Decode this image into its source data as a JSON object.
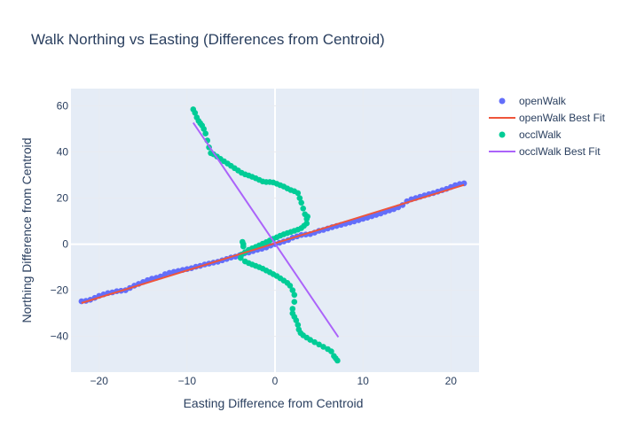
{
  "chart_data": {
    "type": "scatter",
    "title": "Walk Northing vs Easting (Differences from Centroid)",
    "xlabel": "Easting Difference from Centroid",
    "ylabel": "Northing Difference from Centroid",
    "xlim": [
      -23.2,
      23.2
    ],
    "ylim": [
      -55.5,
      67.5
    ],
    "xticks": [
      -20,
      -10,
      0,
      10,
      20
    ],
    "yticks": [
      -40,
      -20,
      0,
      20,
      40,
      60
    ],
    "grid": true,
    "legend": "top-right",
    "series": [
      {
        "name": "openWalk",
        "kind": "markers",
        "color": "#636efa",
        "x": [
          -22,
          -21.5,
          -21,
          -20.5,
          -20,
          -19.5,
          -19,
          -18.5,
          -18,
          -17.5,
          -17,
          -16.5,
          -16,
          -15.5,
          -15,
          -14.5,
          -14,
          -13.5,
          -13,
          -12.5,
          -12,
          -11.5,
          -11,
          -10.5,
          -10,
          -9.5,
          -9,
          -8.5,
          -8,
          -7.5,
          -7,
          -6.5,
          -6,
          -5.5,
          -5,
          -4.5,
          -4,
          -3.5,
          -3,
          -2.5,
          -2,
          -1.5,
          -1,
          -0.5,
          0,
          0.5,
          1,
          1.5,
          2,
          2.5,
          3,
          3.5,
          4,
          4.5,
          5,
          5.5,
          6,
          6.5,
          7,
          7.5,
          8,
          8.5,
          9,
          9.5,
          10,
          10.5,
          11,
          11.5,
          12,
          12.5,
          13,
          13.5,
          14,
          14.5,
          15,
          15.5,
          16,
          16.5,
          17,
          17.5,
          18,
          18.5,
          19,
          19.5,
          20,
          20.5,
          21,
          21.5
        ],
        "y": [
          -24.8,
          -24.6,
          -24.1,
          -23.3,
          -22.4,
          -21.8,
          -21.2,
          -20.9,
          -20.4,
          -20.2,
          -20.0,
          -19.0,
          -18.0,
          -17.2,
          -16.4,
          -15.6,
          -15.0,
          -14.6,
          -14.0,
          -13.0,
          -12.4,
          -12.0,
          -11.6,
          -11.2,
          -10.8,
          -10.4,
          -9.8,
          -9.4,
          -8.8,
          -8.4,
          -8.0,
          -7.6,
          -7.0,
          -6.4,
          -5.8,
          -5.4,
          -4.8,
          -4.0,
          -3.6,
          -3.0,
          -2.4,
          -2.0,
          -1.4,
          -0.6,
          0.0,
          0.6,
          1.2,
          1.8,
          2.8,
          3.4,
          4.0,
          4.2,
          4.4,
          5.0,
          5.8,
          6.2,
          6.8,
          7.4,
          7.9,
          8.4,
          8.9,
          9.4,
          9.9,
          10.4,
          11.0,
          11.5,
          12.1,
          12.7,
          13.3,
          14.0,
          14.6,
          15.2,
          16.0,
          17.0,
          18.6,
          19.5,
          20.0,
          20.6,
          21.2,
          21.7,
          22.2,
          22.8,
          23.4,
          24.0,
          24.8,
          25.6,
          26.1,
          26.4
        ]
      },
      {
        "name": "openWalk Best Fit",
        "kind": "line",
        "color": "#ef553b",
        "x": [
          -22,
          21.5
        ],
        "y": [
          -25.5,
          25.7
        ]
      },
      {
        "name": "occlWalk",
        "kind": "markers",
        "color": "#00cc96",
        "x": [
          -9.3,
          -9.1,
          -8.9,
          -8.7,
          -8.5,
          -8.3,
          -8.1,
          -7.9,
          -7.7,
          -7.5,
          -7.3,
          -7.0,
          -6.6,
          -6.2,
          -5.8,
          -5.4,
          -5.0,
          -4.6,
          -4.2,
          -3.8,
          -3.4,
          -3.0,
          -2.6,
          -2.2,
          -1.8,
          -1.4,
          -1.0,
          -0.6,
          -0.2,
          0.2,
          0.6,
          1.0,
          1.4,
          1.8,
          2.2,
          2.6,
          2.8,
          3.0,
          3.2,
          3.4,
          3.6,
          3.7,
          3.6,
          3.3,
          3.0,
          2.6,
          2.2,
          1.8,
          1.4,
          1.0,
          0.6,
          0.2,
          -0.2,
          -0.6,
          -1.0,
          -1.4,
          -1.8,
          -2.2,
          -2.6,
          -3.0,
          -3.4,
          -3.6,
          -3.6,
          -3.7,
          -3.8,
          -3.9,
          -3.4,
          -3.0,
          -2.6,
          -2.2,
          -1.8,
          -1.4,
          -1.0,
          -0.6,
          -0.2,
          0.2,
          0.6,
          1.0,
          1.4,
          1.7,
          2.0,
          2.2,
          2.2,
          2.0,
          2.0,
          2.2,
          2.4,
          2.6,
          2.7,
          2.9,
          3.2,
          3.6,
          4.0,
          4.5,
          5.0,
          5.5,
          6.0,
          6.4,
          6.7,
          6.9,
          7.1
        ],
        "y": [
          58.5,
          57.0,
          55.0,
          53.5,
          52.5,
          51.5,
          50.0,
          48.0,
          45.0,
          42.0,
          39.5,
          39.0,
          38.0,
          37.0,
          36.0,
          35.0,
          34.0,
          33.0,
          32.0,
          31.0,
          30.3,
          29.8,
          29.2,
          28.6,
          27.9,
          27.2,
          27.0,
          27.0,
          26.8,
          26.2,
          25.6,
          25.0,
          24.2,
          23.5,
          23.0,
          22.2,
          20.0,
          18.0,
          15.5,
          13.0,
          11.0,
          12.0,
          9.0,
          8.0,
          7.0,
          6.3,
          5.8,
          5.3,
          4.8,
          4.3,
          3.7,
          3.0,
          2.3,
          1.6,
          0.9,
          0.2,
          -0.5,
          -1.2,
          -1.8,
          -2.5,
          -3.5,
          -1.0,
          0.0,
          1.0,
          -4.5,
          -6.0,
          -7.5,
          -8.2,
          -8.8,
          -9.4,
          -10.0,
          -10.6,
          -11.4,
          -12.2,
          -13.0,
          -13.8,
          -14.8,
          -15.8,
          -16.8,
          -18.0,
          -20.0,
          -22.0,
          -25.0,
          -28.0,
          -30.0,
          -31.5,
          -33.0,
          -35.0,
          -37.0,
          -38.5,
          -39.5,
          -40.5,
          -41.5,
          -42.5,
          -43.5,
          -44.5,
          -45.5,
          -46.5,
          -48.5,
          -49.5,
          -50.5
        ]
      },
      {
        "name": "occlWalk Best Fit",
        "kind": "line",
        "color": "#ab63fa",
        "x": [
          -9.3,
          7.2
        ],
        "y": [
          52.7,
          -40.3
        ]
      }
    ]
  }
}
